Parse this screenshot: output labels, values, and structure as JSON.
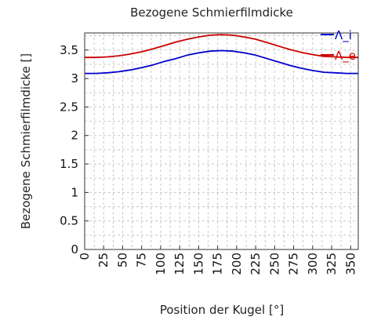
{
  "chart_data": {
    "type": "line",
    "title": "Bezogene Schmierfilmdicke",
    "xlabel": "Position der Kugel [°]",
    "ylabel": "Bezogene Schmierfilmdicke []",
    "xlim": [
      0,
      360
    ],
    "ylim": [
      0,
      3.8
    ],
    "x_ticks": [
      "0",
      "25",
      "50",
      "75",
      "100",
      "125",
      "150",
      "175",
      "200",
      "225",
      "250",
      "275",
      "300",
      "325",
      "350"
    ],
    "y_ticks": [
      "0",
      "0.5",
      "1",
      "1.5",
      "2",
      "2.5",
      "3",
      "3.5"
    ],
    "grid": true,
    "legend_position": "top-right",
    "series": [
      {
        "name": "Λ_i",
        "color": "#0000cc",
        "x": [
          0,
          15,
          30,
          45,
          60,
          75,
          90,
          105,
          120,
          135,
          150,
          165,
          180,
          195,
          210,
          225,
          240,
          255,
          270,
          285,
          300,
          315,
          330,
          345,
          360
        ],
        "values": [
          3.09,
          3.09,
          3.1,
          3.12,
          3.15,
          3.19,
          3.24,
          3.3,
          3.35,
          3.41,
          3.45,
          3.48,
          3.49,
          3.48,
          3.45,
          3.41,
          3.35,
          3.29,
          3.23,
          3.18,
          3.14,
          3.11,
          3.1,
          3.09,
          3.09
        ]
      },
      {
        "name": "Λ_e",
        "color": "#cc0000",
        "x": [
          0,
          15,
          30,
          45,
          60,
          75,
          90,
          105,
          120,
          135,
          150,
          165,
          180,
          195,
          210,
          225,
          240,
          255,
          270,
          285,
          300,
          315,
          330,
          345,
          360
        ],
        "values": [
          3.37,
          3.37,
          3.38,
          3.4,
          3.43,
          3.47,
          3.52,
          3.58,
          3.64,
          3.69,
          3.73,
          3.76,
          3.77,
          3.76,
          3.73,
          3.69,
          3.63,
          3.57,
          3.51,
          3.46,
          3.42,
          3.39,
          3.38,
          3.37,
          3.37
        ]
      }
    ]
  }
}
